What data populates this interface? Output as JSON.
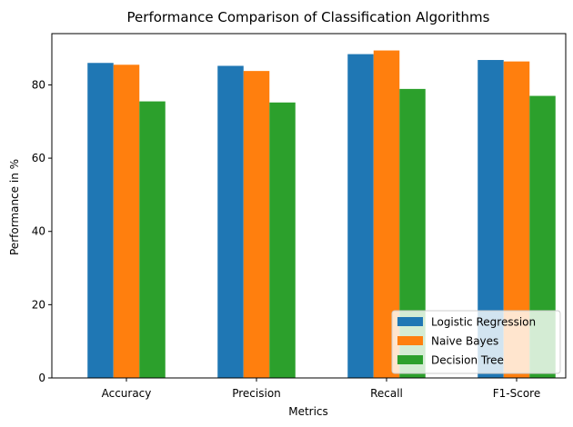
{
  "chart_data": {
    "type": "bar",
    "title": "Performance Comparison of Classification Algorithms",
    "xlabel": "Metrics",
    "ylabel": "Performance in %",
    "categories": [
      "Accuracy",
      "Precision",
      "Recall",
      "F1-Score"
    ],
    "series": [
      {
        "name": "Logistic Regression",
        "color": "#1f77b4",
        "values": [
          86.0,
          85.2,
          88.4,
          86.8
        ]
      },
      {
        "name": "Naive Bayes",
        "color": "#ff7f0e",
        "values": [
          85.5,
          83.8,
          89.4,
          86.4
        ]
      },
      {
        "name": "Decision Tree",
        "color": "#2ca02c",
        "values": [
          75.5,
          75.2,
          78.9,
          77.0
        ]
      }
    ],
    "ylim": [
      0,
      94
    ],
    "yticks": [
      0,
      20,
      40,
      60,
      80
    ],
    "legend_position": "lower-right",
    "grid": false
  }
}
